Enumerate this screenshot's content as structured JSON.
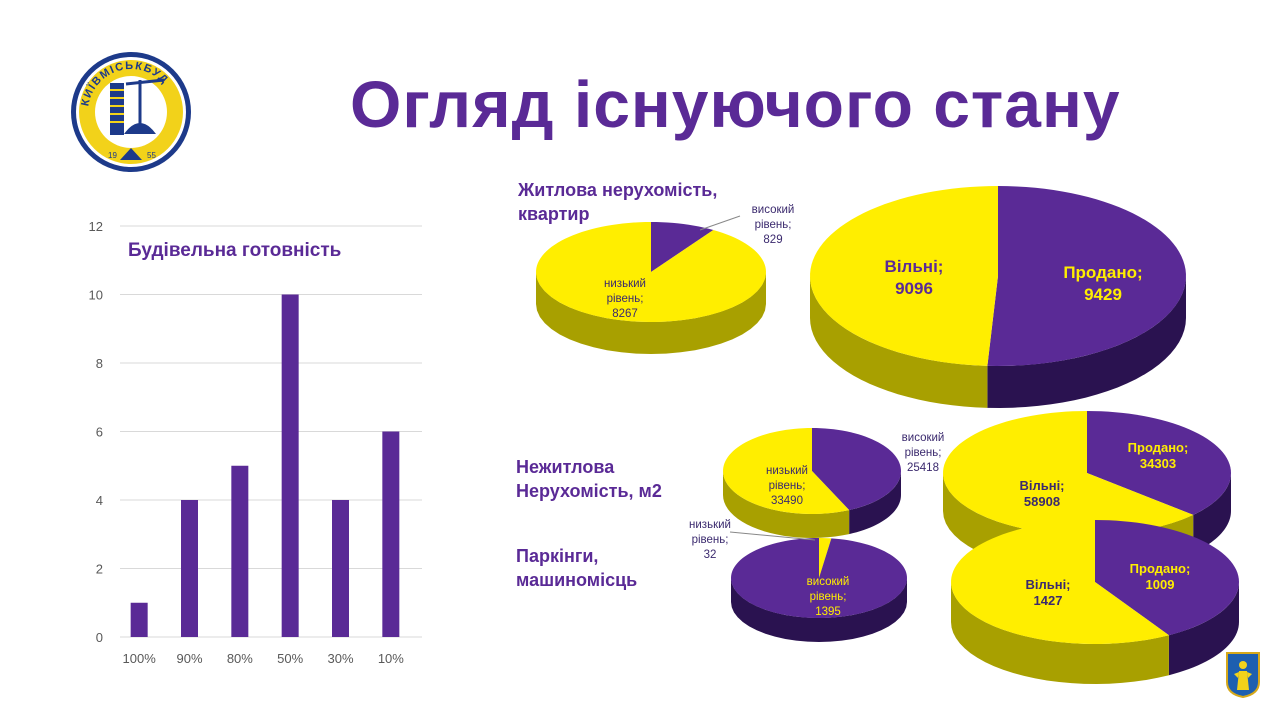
{
  "title": "Огляд існуючого стану",
  "logo": {
    "arc_text": "КИЇВМІСЬКБУД",
    "year_left": "19",
    "year_right": "55"
  },
  "colors": {
    "purple": "#5a2a96",
    "yellow": "#ffee00",
    "dark_yellow": "#a8a000",
    "dark_purple": "#2a1250"
  },
  "chart_data": [
    {
      "type": "bar",
      "title": "Будівельна готовність",
      "categories": [
        "100%",
        "90%",
        "80%",
        "50%",
        "30%",
        "10%"
      ],
      "values": [
        1,
        4,
        5,
        10,
        4,
        6
      ],
      "ylim": [
        0,
        12
      ],
      "yticks": [
        "0",
        "2",
        "4",
        "6",
        "8",
        "10",
        "12"
      ],
      "grid": true,
      "color": "#5a2a96"
    },
    {
      "type": "pie",
      "title": "Житлова нерухомість, квартир",
      "slices": [
        {
          "name": "високий рівень",
          "value": 829,
          "label": [
            "високий",
            "рівень;",
            "829"
          ]
        },
        {
          "name": "низький рівень",
          "value": 8267,
          "label": [
            "низький",
            "рівень;",
            "8267"
          ]
        }
      ]
    },
    {
      "type": "pie",
      "slices": [
        {
          "name": "Продано",
          "value": 9429,
          "label": [
            "Продано;",
            "9429"
          ]
        },
        {
          "name": "Вільні",
          "value": 9096,
          "label": [
            "Вільні;",
            "9096"
          ]
        }
      ]
    },
    {
      "type": "pie",
      "title": "Нежитлова Нерухомість, м2",
      "slices": [
        {
          "name": "високий рівень",
          "value": 25418,
          "label": [
            "високий",
            "рівень;",
            "25418"
          ]
        },
        {
          "name": "низький рівень",
          "value": 33490,
          "label": [
            "низький",
            "рівень;",
            "33490"
          ]
        }
      ]
    },
    {
      "type": "pie",
      "slices": [
        {
          "name": "Продано",
          "value": 34303,
          "label": [
            "Продано;",
            "34303"
          ]
        },
        {
          "name": "Вільні",
          "value": 58908,
          "label": [
            "Вільні;",
            "58908"
          ]
        }
      ]
    },
    {
      "type": "pie",
      "title": "Паркінги, машиномісць",
      "slices": [
        {
          "name": "низький рівень",
          "value": 32,
          "label": [
            "низький",
            "рівень;",
            "32"
          ]
        },
        {
          "name": "високий рівень",
          "value": 1395,
          "label": [
            "високий",
            "рівень;",
            "1395"
          ]
        }
      ]
    },
    {
      "type": "pie",
      "slices": [
        {
          "name": "Продано",
          "value": 1009,
          "label": [
            "Продано;",
            "1009"
          ]
        },
        {
          "name": "Вільні",
          "value": 1427,
          "label": [
            "Вільні;",
            "1427"
          ]
        }
      ]
    }
  ],
  "sections": {
    "residential": [
      "Житлова нерухомість,",
      "квартир"
    ],
    "nonresidential": [
      "Нежитлова",
      "Нерухомість, м2"
    ],
    "parking": [
      "Паркінги,",
      "машиномісць"
    ]
  }
}
